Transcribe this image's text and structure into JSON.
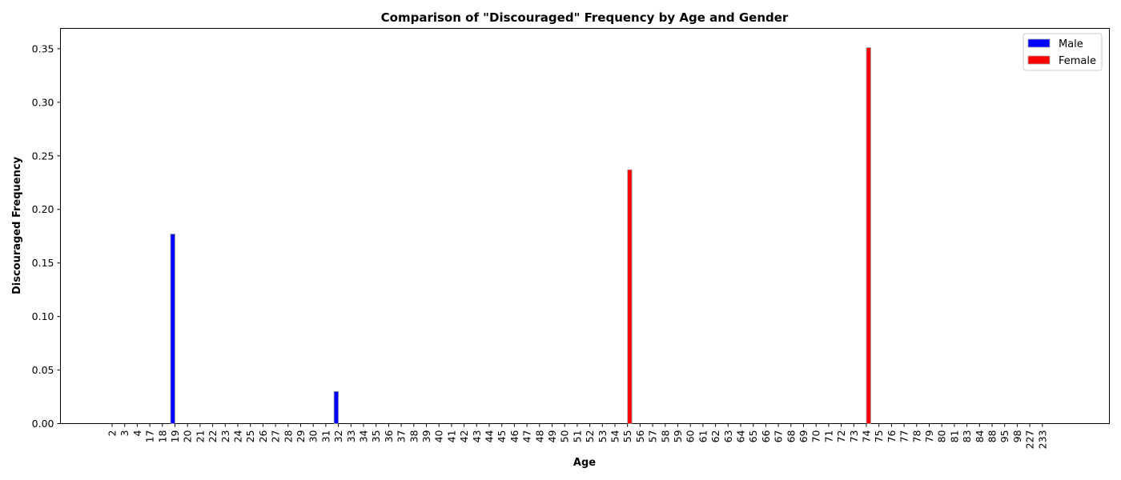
{
  "chart_data": {
    "type": "bar",
    "title": "Comparison of \"Discouraged\" Frequency by Age and Gender",
    "xlabel": "Age",
    "ylabel": "Discouraged Frequency",
    "ylim": [
      0,
      0.369
    ],
    "yticks": [
      "0.00",
      "0.05",
      "0.10",
      "0.15",
      "0.20",
      "0.25",
      "0.30",
      "0.35"
    ],
    "grid": false,
    "legend_position": "top-right",
    "categories": [
      "2",
      "3",
      "4",
      "17",
      "18",
      "19",
      "20",
      "21",
      "22",
      "23",
      "24",
      "25",
      "26",
      "27",
      "28",
      "29",
      "30",
      "31",
      "32",
      "33",
      "34",
      "35",
      "36",
      "37",
      "38",
      "39",
      "40",
      "41",
      "42",
      "43",
      "44",
      "45",
      "46",
      "47",
      "48",
      "49",
      "50",
      "51",
      "52",
      "53",
      "54",
      "55",
      "56",
      "57",
      "58",
      "59",
      "60",
      "61",
      "62",
      "63",
      "64",
      "65",
      "66",
      "67",
      "68",
      "69",
      "70",
      "71",
      "72",
      "73",
      "74",
      "75",
      "76",
      "77",
      "78",
      "79",
      "80",
      "81",
      "83",
      "84",
      "88",
      "95",
      "98",
      "227",
      "233"
    ],
    "series": [
      {
        "name": "Male",
        "color": "#0000ff",
        "values": [
          0,
          0,
          0,
          0,
          0,
          0.177,
          0,
          0,
          0,
          0,
          0,
          0,
          0,
          0,
          0,
          0,
          0,
          0,
          0.03,
          0,
          0,
          0,
          0,
          0,
          0,
          0,
          0,
          0,
          0,
          0,
          0,
          0,
          0,
          0,
          0,
          0,
          0,
          0,
          0,
          0,
          0,
          0,
          0,
          0,
          0,
          0,
          0,
          0,
          0,
          0,
          0,
          0,
          0,
          0,
          0,
          0,
          0,
          0,
          0,
          0,
          0,
          0,
          0,
          0,
          0,
          0,
          0,
          0,
          0,
          0,
          0,
          0,
          0,
          0,
          0
        ]
      },
      {
        "name": "Female",
        "color": "#ff0000",
        "values": [
          0,
          0,
          0,
          0,
          0,
          0,
          0,
          0,
          0,
          0,
          0,
          0,
          0,
          0,
          0,
          0,
          0,
          0,
          0,
          0,
          0,
          0,
          0,
          0,
          0,
          0,
          0,
          0,
          0,
          0,
          0,
          0,
          0,
          0,
          0,
          0,
          0,
          0,
          0,
          0,
          0,
          0.237,
          0,
          0,
          0,
          0,
          0,
          0,
          0,
          0,
          0,
          0,
          0,
          0,
          0,
          0,
          0,
          0,
          0,
          0,
          0.351,
          0,
          0,
          0,
          0,
          0,
          0,
          0,
          0,
          0,
          0,
          0,
          0,
          0,
          0
        ]
      }
    ]
  }
}
